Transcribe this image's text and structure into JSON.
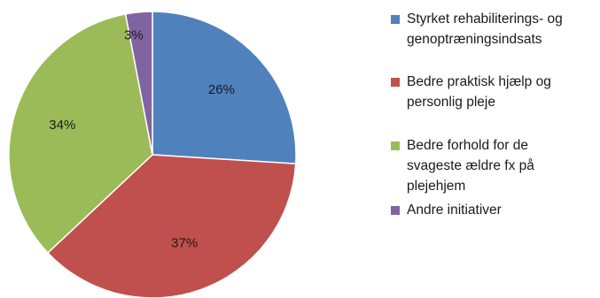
{
  "chart_data": {
    "type": "pie",
    "start_angle_deg": 0,
    "direction": "clockwise",
    "slices": [
      {
        "label": "Styrket rehabiliterings- og genoptræningsindsats",
        "value": 26,
        "value_label": "26%",
        "color": "#4f81bd"
      },
      {
        "label": "Bedre praktisk hjælp og personlig pleje",
        "value": 37,
        "value_label": "37%",
        "color": "#c0504d"
      },
      {
        "label": "Bedre forhold for de svageste ældre fx på plejehjem",
        "value": 34,
        "value_label": "34%",
        "color": "#9bbb59"
      },
      {
        "label": "Andre initiativer",
        "value": 3,
        "value_label": "3%",
        "color": "#8064a2"
      }
    ],
    "legend_position": "right"
  },
  "legend": {
    "items": [
      {
        "lines": [
          "Styrket rehabiliterings- og",
          "genoptræningsindsats"
        ],
        "color": "#4f81bd"
      },
      {
        "lines": [
          "Bedre praktisk hjælp og",
          "personlig pleje"
        ],
        "color": "#c0504d"
      },
      {
        "lines": [
          "Bedre forhold for de",
          "svageste ældre fx på",
          "plejehjem"
        ],
        "color": "#9bbb59"
      },
      {
        "lines": [
          "Andre initiativer"
        ],
        "color": "#8064a2"
      }
    ]
  }
}
